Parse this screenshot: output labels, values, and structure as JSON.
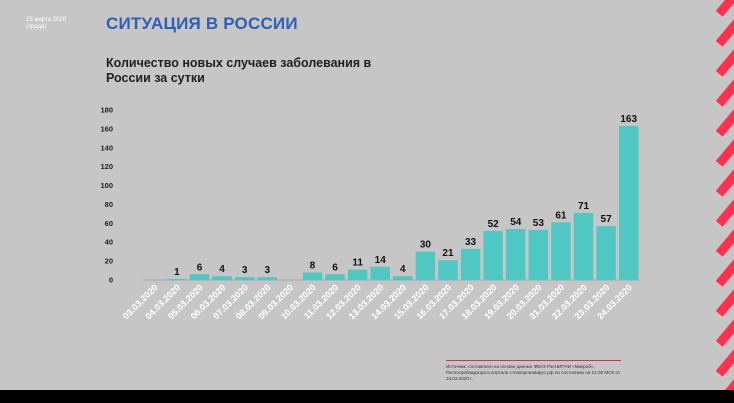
{
  "header": {
    "date_note": "25 марта 2020 (среда)",
    "slide_title": "СИТУАЦИЯ В РОССИИ"
  },
  "chart_data": {
    "type": "bar",
    "title": "Количество новых случаев заболевания в России за сутки",
    "xlabel": "",
    "ylabel": "",
    "ylim": [
      0,
      180
    ],
    "yticks": [
      0,
      20,
      40,
      60,
      80,
      100,
      120,
      140,
      160,
      180
    ],
    "categories": [
      "03.03.2020",
      "04.03.2020",
      "05.03.2020",
      "06.03.2020",
      "07.03.2020",
      "08.03.2020",
      "09.03.2020",
      "10.03.2020",
      "11.03.2020",
      "12.03.2020",
      "13.03.2020",
      "14.03.2020",
      "15.03.2020",
      "16.03.2020",
      "17.03.2020",
      "18.03.2020",
      "19.03.2020",
      "20.03.2020",
      "21.03.2020",
      "22.03.2020",
      "23.03.2020",
      "24.03.2020"
    ],
    "values": [
      0,
      1,
      6,
      4,
      3,
      3,
      0,
      8,
      6,
      11,
      14,
      4,
      30,
      21,
      33,
      52,
      54,
      53,
      61,
      71,
      57,
      163
    ],
    "grid": false,
    "legend": "none",
    "bar_color": "#4fc7c3"
  },
  "source_note": "Источник: составлено на основе данных ФБУЗ РосНИПЧИ «Микроб», Роспотребнадзора и портала стопкоронавирус.рф по состоянию на 21:00 МСК от 24.03.2020 г."
}
